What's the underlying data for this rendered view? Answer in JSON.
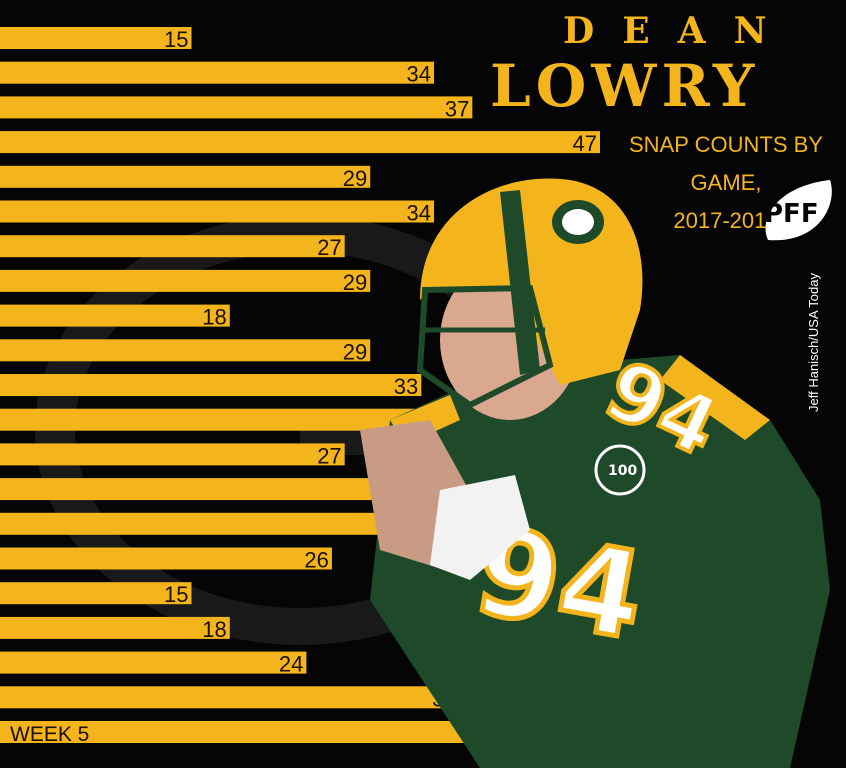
{
  "header": {
    "first_name": "DEAN",
    "last_name": "LOWRY",
    "subtitle_line1": "SNAP COUNTS BY GAME,",
    "subtitle_line2": "2017-2018",
    "logo_text": "PFF",
    "photo_credit": "Jeff Hanisch/USA Today"
  },
  "colors": {
    "bar": "#f4b51c",
    "background": "#050505",
    "title": "#f4b51c"
  },
  "chart_data": {
    "type": "bar",
    "orientation": "horizontal",
    "values": [
      15,
      34,
      37,
      47,
      29,
      34,
      27,
      29,
      18,
      29,
      33,
      38,
      27,
      38,
      32,
      26,
      15,
      18,
      24,
      36,
      42
    ],
    "category_labels": [
      "",
      "",
      "",
      "",
      "",
      "",
      "",
      "",
      "",
      "",
      "",
      "",
      "",
      "",
      "",
      "",
      "",
      "",
      "",
      "",
      "WEEK 5"
    ],
    "data_labels_shown": true,
    "grid": false
  }
}
